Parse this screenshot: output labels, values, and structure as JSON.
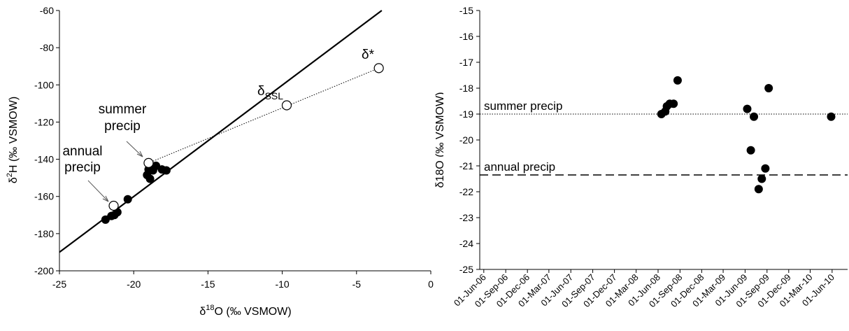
{
  "chart_data": [
    {
      "type": "scatter",
      "title": "",
      "xlabel": {
        "prefix": "δ",
        "sup": "18",
        "main": "O (‰ VSMOW)"
      },
      "ylabel": {
        "prefix": "δ",
        "sup": "2",
        "main": "H (‰ VSMOW)"
      },
      "xlim": [
        -25,
        0
      ],
      "ylim": [
        -200,
        -60
      ],
      "xticks": [
        -25,
        -20,
        -15,
        -10,
        -5,
        0
      ],
      "yticks": [
        -200,
        -180,
        -160,
        -140,
        -120,
        -100,
        -80,
        -60
      ],
      "grid": false,
      "lmwl_line": {
        "x": [
          -25,
          -3.3
        ],
        "y": [
          -190,
          -60
        ]
      },
      "evaporation_line": {
        "x": [
          -19.0,
          -3.5
        ],
        "y": [
          -142,
          -91
        ]
      },
      "samples": {
        "x": [
          -21.9,
          -21.5,
          -21.3,
          -21.1,
          -20.4,
          -19.1,
          -19.0,
          -18.9,
          -18.7,
          -18.5,
          -18.1,
          -17.8
        ],
        "y": [
          -172.5,
          -170.5,
          -170,
          -168.5,
          -161.5,
          -148.5,
          -145.5,
          -150.5,
          -146,
          -143.5,
          -145.5,
          -146
        ]
      },
      "open_points": [
        {
          "name": "annual precip",
          "x": -21.35,
          "y": -165
        },
        {
          "name": "summer precip",
          "x": -19.0,
          "y": -142
        },
        {
          "name": "δSSL",
          "x": -9.7,
          "y": -111
        },
        {
          "name": "δ*",
          "x": -3.5,
          "y": -91
        }
      ],
      "annotations": {
        "summer_precip": [
          "summer",
          "precip"
        ],
        "annual_precip": [
          "annual",
          "precip"
        ],
        "delta_ssl": {
          "base": "δ",
          "sub": "SSL"
        },
        "delta_star": "δ*"
      }
    },
    {
      "type": "scatter",
      "title": "",
      "xlabel": "",
      "ylabel": "δ18O (‰ VSMOW)",
      "ylim": [
        -25,
        -15
      ],
      "yticks": [
        -25,
        -24,
        -23,
        -22,
        -21,
        -20,
        -19,
        -18,
        -17,
        -16,
        -15
      ],
      "x_tick_labels": [
        "01-Jun-06",
        "01-Sep-06",
        "01-Dec-06",
        "01-Mar-07",
        "01-Jun-07",
        "01-Sep-07",
        "01-Dec-07",
        "01-Mar-08",
        "01-Jun-08",
        "01-Sep-08",
        "01-Dec-08",
        "01-Mar-09",
        "01-Jun-09",
        "01-Sep-09",
        "01-Dec-09",
        "01-Mar-10",
        "01-Jun-10"
      ],
      "xlim": [
        "2006-05-15",
        "2010-08-05"
      ],
      "grid": false,
      "samples": {
        "x": [
          "2008-06-15",
          "2008-07-01",
          "2008-07-08",
          "2008-07-20",
          "2008-08-05",
          "2008-08-22",
          "2009-06-10",
          "2009-06-25",
          "2009-07-08",
          "2009-07-28",
          "2009-08-10",
          "2009-08-25",
          "2009-09-08",
          "2010-05-28"
        ],
        "y": [
          -19.0,
          -18.9,
          -18.7,
          -18.6,
          -18.6,
          -17.7,
          -18.8,
          -20.4,
          -19.1,
          -21.9,
          -21.5,
          -21.1,
          -18.0,
          -19.1
        ]
      },
      "reference_lines": [
        {
          "name": "summer precip",
          "y": -19.0,
          "style": "dotted"
        },
        {
          "name": "annual precip",
          "y": -21.35,
          "style": "dashed"
        }
      ]
    }
  ]
}
